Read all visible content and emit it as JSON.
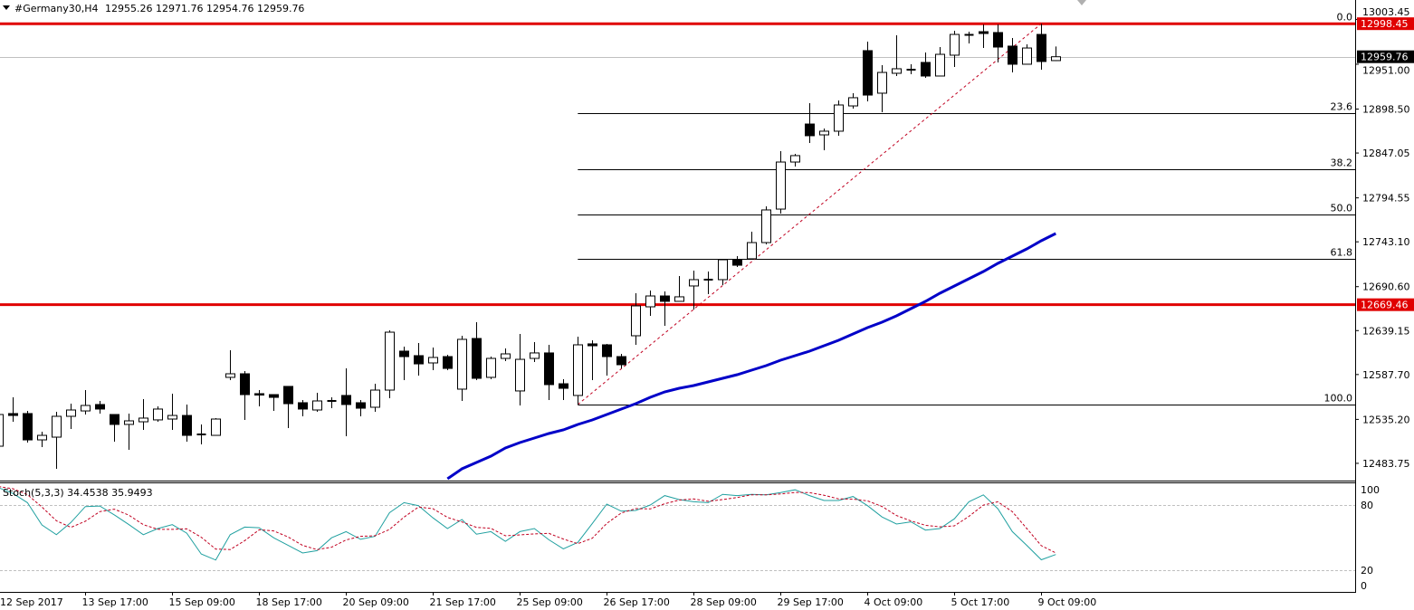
{
  "header": {
    "menu_icon": "triangle-down-icon",
    "symbol": "#Germany30,H4",
    "ohlc_text": "12955.26 12971.76 12954.76 12959.76"
  },
  "colors": {
    "level_line": "#e00000",
    "moving_average": "#0000c8",
    "stoch_main": "#20a0a0",
    "stoch_signal": "#c00020",
    "fib_trend": "#c00020",
    "bid_line": "#c0c0c0"
  },
  "chart_data": [
    {
      "type": "candlestick",
      "symbol": "#Germany30,H4",
      "columns": [
        "open",
        "high",
        "low",
        "close"
      ],
      "candles": [
        [
          12503.8,
          12544.1,
          12503.8,
          12540.9
        ],
        [
          12542.0,
          12561.0,
          12532.4,
          12539.8
        ],
        [
          12542.0,
          12545.1,
          12508.1,
          12511.2
        ],
        [
          12511.2,
          12520.8,
          12502.8,
          12516.5
        ],
        [
          12514.4,
          12544.1,
          12477.3,
          12538.8
        ],
        [
          12538.8,
          12553.6,
          12524.0,
          12546.2
        ],
        [
          12545.1,
          12569.5,
          12540.9,
          12551.5
        ],
        [
          12552.6,
          12556.8,
          12542.0,
          12547.3
        ],
        [
          12540.9,
          12540.9,
          12509.1,
          12529.3
        ],
        [
          12529.3,
          12542.0,
          12499.6,
          12533.5
        ],
        [
          12532.4,
          12558.9,
          12522.9,
          12536.7
        ],
        [
          12534.6,
          12550.4,
          12532.4,
          12547.3
        ],
        [
          12535.6,
          12565.3,
          12522.9,
          12539.8
        ],
        [
          12539.8,
          12552.6,
          12509.1,
          12516.5
        ],
        [
          12517.6,
          12529.3,
          12505.9,
          12516.5
        ],
        [
          12516.5,
          12536.7,
          12516.5,
          12535.6
        ],
        [
          12584.4,
          12616.1,
          12581.2,
          12588.6
        ],
        [
          12588.6,
          12591.8,
          12534.6,
          12564.2
        ],
        [
          12565.3,
          12569.5,
          12550.4,
          12563.7
        ],
        [
          12564.2,
          12564.2,
          12545.1,
          12561.0
        ],
        [
          12573.8,
          12573.8,
          12525.0,
          12553.6
        ],
        [
          12554.7,
          12557.9,
          12538.8,
          12547.3
        ],
        [
          12546.2,
          12566.3,
          12544.1,
          12556.8
        ],
        [
          12556.8,
          12561.0,
          12548.3,
          12556.3
        ],
        [
          12563.2,
          12594.9,
          12515.5,
          12552.6
        ],
        [
          12554.7,
          12557.9,
          12538.8,
          12548.3
        ],
        [
          12549.4,
          12576.9,
          12544.1,
          12569.5
        ],
        [
          12569.5,
          12639.5,
          12560.0,
          12637.3
        ],
        [
          12615.1,
          12620.4,
          12581.2,
          12608.7
        ],
        [
          12609.8,
          12624.6,
          12586.5,
          12600.2
        ],
        [
          12601.3,
          12619.3,
          12592.8,
          12607.7
        ],
        [
          12608.7,
          12610.8,
          12592.8,
          12594.9
        ],
        [
          12570.6,
          12633.1,
          12556.8,
          12628.9
        ],
        [
          12629.9,
          12649.0,
          12581.2,
          12583.3
        ],
        [
          12584.4,
          12608.7,
          12582.2,
          12606.6
        ],
        [
          12606.6,
          12618.3,
          12603.4,
          12611.9
        ],
        [
          12568.5,
          12635.2,
          12551.5,
          12605.5
        ],
        [
          12606.6,
          12625.7,
          12602.4,
          12613.0
        ],
        [
          12613.0,
          12622.5,
          12557.9,
          12575.9
        ],
        [
          12576.9,
          12582.2,
          12557.9,
          12571.6
        ],
        [
          12563.2,
          12632.0,
          12552.6,
          12622.5
        ],
        [
          12623.6,
          12627.8,
          12581.2,
          12621.4
        ],
        [
          12622.5,
          12623.6,
          12586.5,
          12608.7
        ],
        [
          12608.7,
          12611.9,
          12594.9,
          12599.2
        ],
        [
          12633.1,
          12682.9,
          12622.5,
          12668.1
        ],
        [
          12667.0,
          12686.1,
          12656.4,
          12679.7
        ],
        [
          12679.7,
          12685.0,
          12644.7,
          12673.4
        ],
        [
          12673.4,
          12703.0,
          12673.4,
          12678.7
        ],
        [
          12691.4,
          12709.4,
          12663.8,
          12698.8
        ],
        [
          12698.8,
          12708.3,
          12681.8,
          12698.3
        ],
        [
          12698.8,
          12722.1,
          12692.4,
          12722.1
        ],
        [
          12722.1,
          12726.3,
          12713.6,
          12715.7
        ],
        [
          12723.2,
          12754.9,
          12723.2,
          12742.2
        ],
        [
          12742.2,
          12784.6,
          12740.1,
          12780.4
        ],
        [
          12781.4,
          12849.3,
          12776.1,
          12836.5
        ],
        [
          12836.5,
          12846.1,
          12831.2,
          12844.0
        ],
        [
          12881.0,
          12905.4,
          12858.8,
          12867.3
        ],
        [
          12868.3,
          12875.7,
          12850.3,
          12872.6
        ],
        [
          12872.6,
          12908.6,
          12867.3,
          12903.3
        ],
        [
          12902.2,
          12917.1,
          12899.1,
          12911.8
        ],
        [
          12966.9,
          12977.5,
          12907.5,
          12914.9
        ],
        [
          12917.1,
          12949.9,
          12894.8,
          12941.4
        ],
        [
          12940.4,
          12984.9,
          12937.2,
          12945.7
        ],
        [
          12944.6,
          12951.0,
          12939.3,
          12944.1
        ],
        [
          12953.1,
          12964.7,
          12935.1,
          12937.2
        ],
        [
          12937.2,
          12971.1,
          12937.2,
          12962.6
        ],
        [
          12961.6,
          12990.2,
          12947.8,
          12985.9
        ],
        [
          12984.9,
          12989.1,
          12975.3,
          12985.4
        ],
        [
          12989.1,
          12997.6,
          12970.0,
          12987.0
        ],
        [
          12988.1,
          12997.6,
          12953.1,
          12971.1
        ],
        [
          12972.2,
          12981.7,
          12941.4,
          12951.0
        ],
        [
          12951.0,
          12974.3,
          12951.0,
          12970.0
        ],
        [
          12985.9,
          12998.4,
          12944.6,
          12954.2
        ],
        [
          12955.26,
          12971.76,
          12954.76,
          12959.76
        ]
      ],
      "moving_average": [
        null,
        null,
        null,
        null,
        null,
        null,
        null,
        null,
        null,
        null,
        null,
        null,
        null,
        null,
        null,
        null,
        null,
        null,
        null,
        null,
        null,
        null,
        null,
        null,
        null,
        null,
        null,
        null,
        null,
        null,
        null,
        12465.7,
        12477.3,
        12484.7,
        12492.2,
        12501.7,
        12508.1,
        12513.4,
        12518.7,
        12522.9,
        12529.2,
        12534.5,
        12540.9,
        12547.3,
        12553.6,
        12561.0,
        12567.4,
        12571.6,
        12574.8,
        12579.0,
        12583.3,
        12587.5,
        12592.8,
        12598.1,
        12604.5,
        12609.8,
        12615.1,
        12621.4,
        12627.8,
        12635.2,
        12642.6,
        12649.0,
        12656.4,
        12664.9,
        12673.4,
        12682.9,
        12691.4,
        12699.8,
        12708.3,
        12717.9,
        12726.3,
        12734.8,
        12744.3,
        12752.8
      ],
      "x_tick_every": 6,
      "x_tick_labels": [
        "12 Sep 2017",
        "13 Sep 17:00",
        "15 Sep 09:00",
        "18 Sep 17:00",
        "20 Sep 09:00",
        "21 Sep 17:00",
        "25 Sep 09:00",
        "26 Sep 17:00",
        "28 Sep 09:00",
        "29 Sep 17:00",
        "4 Oct 09:00",
        "5 Oct 17:00",
        "9 Oct 09:00"
      ],
      "y_tick_labels": [
        "13003.45",
        "12951.00",
        "12898.50",
        "12847.05",
        "12794.55",
        "12743.10",
        "12690.60",
        "12639.15",
        "12587.70",
        "12535.20",
        "12483.75"
      ],
      "ylim": [
        12464,
        13026
      ],
      "horizontal_levels": [
        {
          "price": 12998.45,
          "label": "12998.45",
          "color": "#e00000"
        },
        {
          "price": 12669.46,
          "label": "12669.46",
          "color": "#e00000"
        }
      ],
      "current_price": {
        "price": 12959.76,
        "label": "12959.76"
      },
      "fibonacci": {
        "low": 12552.6,
        "high": 12998.45,
        "start_index": 40,
        "end_index": 72,
        "levels": [
          {
            "ratio": 0.0,
            "label": "0.0"
          },
          {
            "ratio": 0.236,
            "label": "23.6"
          },
          {
            "ratio": 0.382,
            "label": "38.2"
          },
          {
            "ratio": 0.5,
            "label": "50.0"
          },
          {
            "ratio": 0.618,
            "label": "61.8"
          },
          {
            "ratio": 1.0,
            "label": "100.0"
          }
        ]
      }
    },
    {
      "type": "line",
      "title": "Stoch(5,3,3) 34.4538 35.9493",
      "ylim": [
        0,
        100
      ],
      "y_tick_labels": [
        "100",
        "80",
        "20",
        "0"
      ],
      "levels": [
        80,
        20
      ],
      "series": [
        {
          "key": "main",
          "values": [
            96,
            90.7,
            82.2,
            61.7,
            52.7,
            63.9,
            78.6,
            79.1,
            70.9,
            62,
            52.7,
            58.3,
            61.9,
            54.1,
            34.9,
            29.3,
            52.7,
            59.7,
            59.1,
            49.8,
            42.8,
            35.8,
            38.0,
            49.8,
            55.5,
            48.4,
            51.2,
            72.9,
            82.2,
            79.4,
            68.2,
            58.3,
            66.7,
            53.2,
            55.5,
            46.5,
            55.5,
            58.3,
            48,
            39.7,
            45.6,
            63,
            80.8,
            74.3,
            75,
            80,
            88.7,
            85,
            83,
            82.2,
            89.8,
            88.7,
            89.8,
            89.3,
            91.5,
            94,
            88.7,
            84.2,
            84.2,
            87.8,
            79.4,
            69,
            62.5,
            64.5,
            56.9,
            58.3,
            67.3,
            83,
            89.3,
            76.6,
            55.5,
            42.8,
            29.6,
            34.4538
          ]
        },
        {
          "key": "signal",
          "values": [
            97,
            95,
            89.6,
            78.2,
            65.5,
            59.4,
            65.1,
            73.9,
            76.2,
            70.7,
            61.9,
            57.7,
            57.6,
            58.1,
            50.3,
            39.4,
            39.0,
            47.2,
            57.2,
            56.2,
            50.6,
            42.8,
            38.9,
            41.2,
            47.8,
            51.2,
            51.7,
            57.5,
            68.8,
            78.2,
            76.6,
            68.6,
            64.4,
            59.4,
            58.5,
            51.7,
            52.5,
            53.4,
            53.9,
            48.7,
            44.4,
            49.4,
            63.1,
            72.7,
            76.7,
            76.4,
            81.2,
            84.6,
            85.6,
            83.4,
            85,
            86.9,
            89.4,
            89.3,
            90.2,
            91.6,
            91.4,
            89,
            85.7,
            85.4,
            83.8,
            78.7,
            70.3,
            65.3,
            61.3,
            59.9,
            60.8,
            69.5,
            79.9,
            83,
            73.8,
            58.3,
            42.6,
            35.9493
          ]
        }
      ]
    }
  ]
}
